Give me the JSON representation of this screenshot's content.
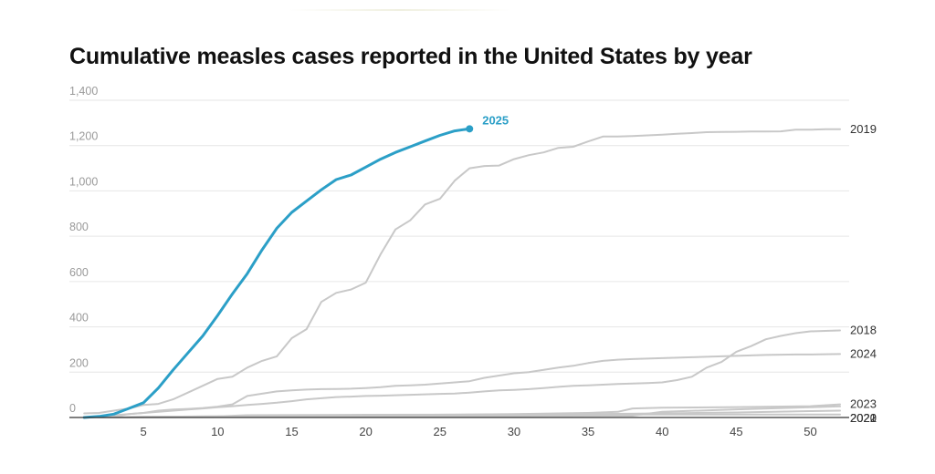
{
  "chart_data": {
    "type": "line",
    "title": "Cumulative measles cases reported in the United States by year",
    "xlabel": "",
    "ylabel": "",
    "xlim": [
      0,
      52
    ],
    "ylim": [
      0,
      1400
    ],
    "xticks": [
      5,
      10,
      15,
      20,
      25,
      30,
      35,
      40,
      45,
      50
    ],
    "yticks": [
      0,
      200,
      400,
      600,
      800,
      1000,
      1200,
      1400
    ],
    "y_tick_labels": [
      "0",
      "200",
      "400",
      "600",
      "800",
      "1,000",
      "1,200",
      "1,400"
    ],
    "grid": "horizontal",
    "colors": {
      "highlight": "#2b9fc7",
      "other": "#c8c8c8",
      "grid": "#e6e6e6",
      "axis": "#333333"
    },
    "series": [
      {
        "name": "2019",
        "highlight": false,
        "x": [
          1,
          2,
          3,
          4,
          5,
          6,
          7,
          8,
          9,
          10,
          11,
          12,
          13,
          14,
          15,
          16,
          17,
          18,
          19,
          20,
          21,
          22,
          23,
          24,
          25,
          26,
          27,
          28,
          29,
          30,
          31,
          32,
          33,
          34,
          35,
          36,
          37,
          38,
          39,
          40,
          41,
          42,
          43,
          44,
          45,
          46,
          47,
          48,
          49,
          50,
          51,
          52
        ],
        "y": [
          18,
          20,
          30,
          40,
          55,
          60,
          80,
          110,
          140,
          170,
          180,
          220,
          250,
          270,
          350,
          390,
          510,
          550,
          565,
          595,
          720,
          830,
          870,
          940,
          965,
          1045,
          1100,
          1110,
          1112,
          1140,
          1158,
          1170,
          1190,
          1195,
          1218,
          1240,
          1240,
          1242,
          1245,
          1248,
          1252,
          1255,
          1259,
          1260,
          1261,
          1262,
          1262,
          1263,
          1270,
          1270,
          1272,
          1272
        ]
      },
      {
        "name": "2018",
        "highlight": false,
        "x": [
          1,
          2,
          3,
          4,
          5,
          6,
          7,
          8,
          9,
          10,
          11,
          12,
          13,
          14,
          15,
          16,
          17,
          18,
          19,
          20,
          21,
          22,
          23,
          24,
          25,
          26,
          27,
          28,
          29,
          30,
          31,
          32,
          33,
          34,
          35,
          36,
          37,
          38,
          39,
          40,
          41,
          42,
          43,
          44,
          45,
          46,
          47,
          48,
          49,
          50,
          51,
          52
        ],
        "y": [
          0,
          2,
          5,
          15,
          20,
          25,
          30,
          35,
          40,
          45,
          50,
          55,
          60,
          65,
          72,
          80,
          85,
          90,
          92,
          95,
          96,
          98,
          100,
          102,
          104,
          106,
          110,
          115,
          120,
          122,
          125,
          130,
          135,
          140,
          142,
          145,
          148,
          150,
          152,
          155,
          165,
          180,
          220,
          245,
          290,
          315,
          345,
          360,
          372,
          380,
          382,
          384
        ]
      },
      {
        "name": "2024",
        "highlight": false,
        "x": [
          1,
          2,
          3,
          4,
          5,
          6,
          7,
          8,
          9,
          10,
          11,
          12,
          13,
          14,
          15,
          16,
          17,
          18,
          19,
          20,
          21,
          22,
          23,
          24,
          25,
          26,
          27,
          28,
          29,
          30,
          31,
          32,
          33,
          34,
          35,
          36,
          37,
          38,
          39,
          40,
          41,
          42,
          43,
          44,
          45,
          46,
          47,
          48,
          49,
          50,
          51,
          52
        ],
        "y": [
          0,
          5,
          10,
          15,
          20,
          30,
          35,
          38,
          42,
          48,
          58,
          95,
          105,
          115,
          120,
          123,
          125,
          126,
          127,
          130,
          134,
          140,
          142,
          145,
          150,
          155,
          160,
          175,
          185,
          195,
          200,
          210,
          220,
          228,
          240,
          250,
          255,
          258,
          260,
          262,
          264,
          266,
          268,
          270,
          272,
          274,
          276,
          277,
          278,
          278,
          279,
          280
        ]
      },
      {
        "name": "2022",
        "highlight": false,
        "x": [
          1,
          5,
          10,
          20,
          30,
          35,
          40,
          45,
          50,
          52
        ],
        "y": [
          0,
          3,
          5,
          8,
          12,
          15,
          18,
          22,
          28,
          30
        ]
      },
      {
        "name": "2023",
        "highlight": false,
        "x": [
          1,
          5,
          10,
          20,
          30,
          35,
          37,
          38,
          40,
          45,
          50,
          52
        ],
        "y": [
          0,
          3,
          5,
          10,
          15,
          20,
          25,
          40,
          43,
          46,
          50,
          58
        ]
      },
      {
        "name": "2021",
        "highlight": false,
        "x": [
          1,
          5,
          10,
          20,
          30,
          38,
          40,
          45,
          50,
          52
        ],
        "y": [
          0,
          1,
          2,
          4,
          6,
          8,
          25,
          36,
          45,
          49
        ]
      },
      {
        "name": "2020",
        "highlight": false,
        "x": [
          1,
          5,
          10,
          12,
          20,
          30,
          40,
          52
        ],
        "y": [
          0,
          2,
          5,
          10,
          12,
          13,
          13,
          13
        ]
      },
      {
        "name": "2025",
        "highlight": true,
        "x": [
          1,
          2,
          3,
          4,
          5,
          6,
          7,
          8,
          9,
          10,
          11,
          12,
          13,
          14,
          15,
          16,
          17,
          18,
          19,
          20,
          21,
          22,
          23,
          24,
          25,
          26,
          27
        ],
        "y": [
          0,
          5,
          15,
          40,
          65,
          130,
          210,
          285,
          360,
          450,
          545,
          635,
          740,
          835,
          905,
          955,
          1005,
          1050,
          1070,
          1105,
          1140,
          1170,
          1195,
          1220,
          1245,
          1265,
          1274
        ]
      }
    ]
  }
}
